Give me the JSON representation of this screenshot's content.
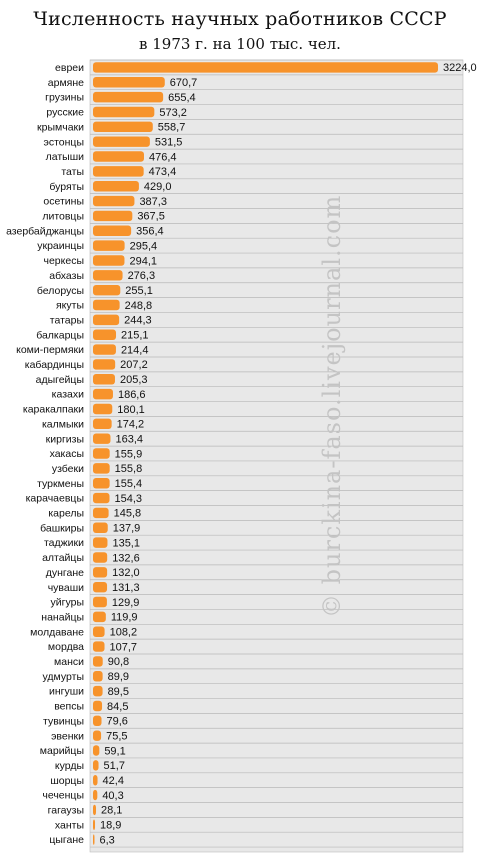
{
  "chart_data": {
    "type": "bar",
    "orientation": "horizontal",
    "title": "Численность научных работников СССР",
    "subtitle": "в 1973 г. на 100 тыс. чел.",
    "watermark": "© burckina-faso.livejournal.com",
    "bar_color": "#f7932b",
    "categories": [
      "евреи",
      "армяне",
      "грузины",
      "русские",
      "крымчаки",
      "эстонцы",
      "латыши",
      "таты",
      "буряты",
      "осетины",
      "литовцы",
      "азербайджанцы",
      "украинцы",
      "черкесы",
      "абхазы",
      "белорусы",
      "якуты",
      "татары",
      "балкарцы",
      "коми-пермяки",
      "кабардинцы",
      "адыгейцы",
      "казахи",
      "каракалпаки",
      "калмыки",
      "киргизы",
      "хакасы",
      "узбеки",
      "туркмены",
      "карачаевцы",
      "карелы",
      "башкиры",
      "таджики",
      "алтайцы",
      "дунгане",
      "чуваши",
      "уйгуры",
      "нанайцы",
      "молдаване",
      "мордва",
      "манси",
      "удмурты",
      "ингуши",
      "вепсы",
      "тувинцы",
      "эвенки",
      "марийцы",
      "курды",
      "шорцы",
      "чеченцы",
      "гагаузы",
      "ханты",
      "цыгане"
    ],
    "values": [
      3224.0,
      670.7,
      655.4,
      573.2,
      558.7,
      531.5,
      476.4,
      473.4,
      429.0,
      387.3,
      367.5,
      356.4,
      295.4,
      294.1,
      276.3,
      255.1,
      248.8,
      244.3,
      215.1,
      214.4,
      207.2,
      205.3,
      186.6,
      180.1,
      174.2,
      163.4,
      155.9,
      155.8,
      155.4,
      154.3,
      145.8,
      137.9,
      135.1,
      132.6,
      132.0,
      131.3,
      129.9,
      119.9,
      108.2,
      107.7,
      90.8,
      89.9,
      89.5,
      84.5,
      79.6,
      75.5,
      59.1,
      51.7,
      42.4,
      40.3,
      28.1,
      18.9,
      6.3
    ],
    "value_labels": [
      "3224,0",
      "670,7",
      "655,4",
      "573,2",
      "558,7",
      "531,5",
      "476,4",
      "473,4",
      "429,0",
      "387,3",
      "367,5",
      "356,4",
      "295,4",
      "294,1",
      "276,3",
      "255,1",
      "248,8",
      "244,3",
      "215,1",
      "214,4",
      "207,2",
      "205,3",
      "186,6",
      "180,1",
      "174,2",
      "163,4",
      "155,9",
      "155,8",
      "155,4",
      "154,3",
      "145,8",
      "137,9",
      "135,1",
      "132,6",
      "132,0",
      "131,3",
      "129,9",
      "119,9",
      "108,2",
      "107,7",
      "90,8",
      "89,9",
      "89,5",
      "84,5",
      "79,6",
      "75,5",
      "59,1",
      "51,7",
      "42,4",
      "40,3",
      "28,1",
      "18,9",
      "6,3"
    ],
    "xlim": [
      0,
      3224.0
    ],
    "grid": true
  }
}
